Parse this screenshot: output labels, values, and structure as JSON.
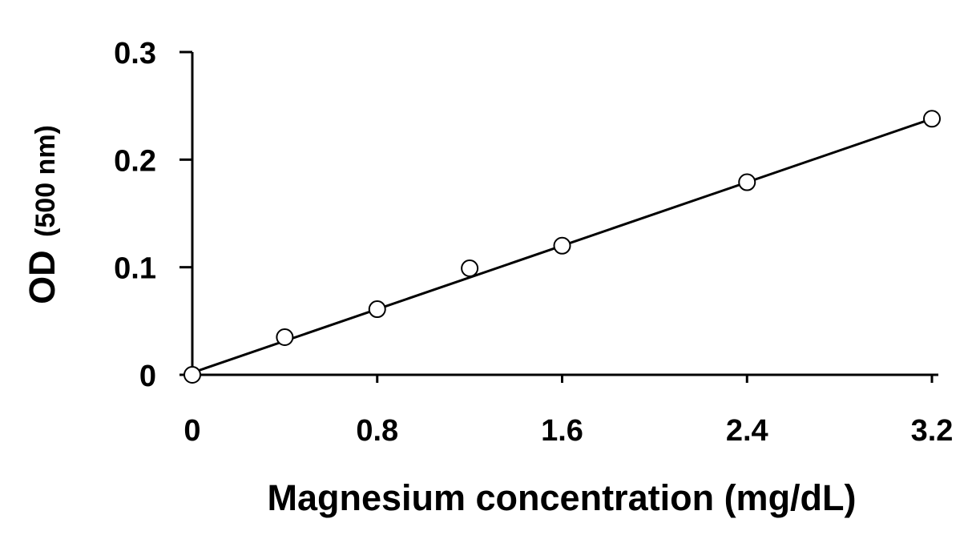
{
  "chart_data": {
    "type": "scatter",
    "title": "",
    "xlabel": "Magnesium concentration (mg/dL)",
    "ylabel_main": "OD",
    "ylabel_sub": "(500 nm)",
    "xlim": [
      0,
      3.2
    ],
    "ylim": [
      0,
      0.3
    ],
    "x_ticks": [
      0,
      0.8,
      1.6,
      2.4,
      3.2
    ],
    "x_tick_labels": [
      "0",
      "0.8",
      "1.6",
      "2.4",
      "3.2"
    ],
    "y_ticks": [
      0,
      0.1,
      0.2,
      0.3
    ],
    "y_tick_labels": [
      "0",
      "0.1",
      "0.2",
      "0.3"
    ],
    "grid": false,
    "legend": "none",
    "points": [
      {
        "x": 0,
        "y": 0
      },
      {
        "x": 0.4,
        "y": 0.035
      },
      {
        "x": 0.8,
        "y": 0.061
      },
      {
        "x": 1.2,
        "y": 0.099
      },
      {
        "x": 1.6,
        "y": 0.12
      },
      {
        "x": 2.4,
        "y": 0.179
      },
      {
        "x": 3.2,
        "y": 0.238
      }
    ],
    "fit_line": {
      "x": [
        0,
        3.2
      ],
      "y": [
        0.002,
        0.238
      ]
    },
    "colors": {
      "line": "#000000",
      "marker_fill": "#ffffff",
      "marker_stroke": "#000000"
    }
  }
}
